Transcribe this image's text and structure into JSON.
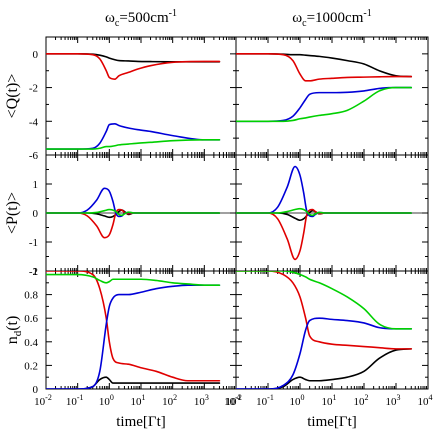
{
  "chart_data": {
    "type": "line",
    "columns": [
      {
        "title": "ω",
        "title_sub": "c",
        "title_value": "=500cm",
        "title_sup": "-1"
      },
      {
        "title": "ω",
        "title_sub": "c",
        "title_value": "=1000cm",
        "title_sup": "-1"
      }
    ],
    "xlabel": "time[Γt]",
    "x_scale": "log",
    "xlim": [
      0.01,
      10000
    ],
    "x_ticks": [
      0.01,
      0.1,
      1,
      10,
      100,
      1000,
      10000
    ],
    "x_tick_labels": [
      {
        "base": "10",
        "exp": "-2"
      },
      {
        "base": "10",
        "exp": "-1"
      },
      {
        "base": "10",
        "exp": "0"
      },
      {
        "base": "10",
        "exp": "1"
      },
      {
        "base": "10",
        "exp": "2"
      },
      {
        "base": "10",
        "exp": "3"
      },
      {
        "base": "10",
        "exp": "4"
      }
    ],
    "rows": [
      {
        "ylabel": "<Q(t)>",
        "ylim": [
          -6,
          1
        ],
        "y_ticks": [
          -6,
          -4,
          -2,
          0
        ],
        "y_tick_labels": [
          "-6",
          "-4",
          "-2",
          "0"
        ],
        "zero_line": false
      },
      {
        "ylabel": "<P(t)>",
        "ylim": [
          -2,
          2
        ],
        "y_ticks": [
          -2,
          -1,
          0,
          1
        ],
        "y_tick_labels": [
          "-2",
          "-1",
          "0",
          "1"
        ],
        "zero_line": true
      },
      {
        "ylabel": "n_d(t)",
        "ylabel_base": "n",
        "ylabel_sub": "d",
        "ylabel_rest": "(t)",
        "ylim": [
          0,
          1
        ],
        "y_ticks": [
          0,
          0.2,
          0.4,
          0.6,
          0.8,
          1
        ],
        "y_tick_labels": [
          "0",
          "0.2",
          "0.4",
          "0.6",
          "0.8",
          "1"
        ],
        "zero_line": false
      }
    ],
    "colors": {
      "black": "#000000",
      "red": "#e00000",
      "green": "#00d000",
      "blue": "#0000d8"
    },
    "panels": [
      {
        "row": 0,
        "col": 0,
        "x": [
          0.01,
          0.1,
          0.3,
          0.5,
          0.8,
          1,
          1.5,
          2,
          4,
          8,
          20,
          100,
          1000,
          3000
        ],
        "series": [
          {
            "color": "black",
            "values": [
              0,
              0,
              -0.02,
              -0.08,
              -0.18,
              -0.25,
              -0.35,
              -0.4,
              -0.42,
              -0.45,
              -0.46,
              -0.47,
              -0.47,
              -0.47
            ]
          },
          {
            "color": "red",
            "values": [
              0,
              0,
              -0.05,
              -0.3,
              -1.0,
              -1.4,
              -1.5,
              -1.3,
              -1.1,
              -0.9,
              -0.7,
              -0.5,
              -0.45,
              -0.45
            ]
          },
          {
            "color": "blue",
            "values": [
              -5.65,
              -5.65,
              -5.6,
              -5.3,
              -4.6,
              -4.2,
              -4.15,
              -4.25,
              -4.4,
              -4.5,
              -4.6,
              -4.85,
              -5.1,
              -5.1
            ]
          },
          {
            "color": "green",
            "values": [
              -5.65,
              -5.65,
              -5.65,
              -5.6,
              -5.5,
              -5.5,
              -5.45,
              -5.4,
              -5.35,
              -5.3,
              -5.25,
              -5.15,
              -5.1,
              -5.1
            ]
          }
        ]
      },
      {
        "row": 0,
        "col": 1,
        "x": [
          0.01,
          0.1,
          0.3,
          0.6,
          1,
          1.5,
          2,
          4,
          10,
          30,
          100,
          300,
          1000,
          3000
        ],
        "series": [
          {
            "color": "black",
            "values": [
              0,
              0,
              -0.02,
              -0.05,
              -0.05,
              -0.08,
              -0.1,
              -0.15,
              -0.25,
              -0.4,
              -0.6,
              -1.0,
              -1.3,
              -1.35
            ]
          },
          {
            "color": "red",
            "values": [
              0,
              0,
              -0.05,
              -0.4,
              -1.2,
              -1.6,
              -1.6,
              -1.5,
              -1.45,
              -1.4,
              -1.38,
              -1.36,
              -1.35,
              -1.35
            ]
          },
          {
            "color": "blue",
            "values": [
              -4,
              -4,
              -3.95,
              -3.7,
              -3.2,
              -2.7,
              -2.4,
              -2.3,
              -2.3,
              -2.28,
              -2.2,
              -2.05,
              -2.0,
              -2.0
            ]
          },
          {
            "color": "green",
            "values": [
              -4,
              -4,
              -4,
              -3.95,
              -3.85,
              -3.8,
              -3.75,
              -3.65,
              -3.55,
              -3.35,
              -2.8,
              -2.2,
              -2.0,
              -2.0
            ]
          }
        ]
      },
      {
        "row": 1,
        "col": 0,
        "x": [
          0.01,
          0.1,
          0.2,
          0.4,
          0.7,
          1,
          1.3,
          1.6,
          2,
          2.5,
          3,
          4,
          6,
          10,
          100,
          3000
        ],
        "series": [
          {
            "color": "black",
            "values": [
              0,
              0,
              0,
              -0.03,
              -0.1,
              -0.15,
              -0.12,
              -0.05,
              0.05,
              0.1,
              0.05,
              -0.05,
              0,
              0,
              0,
              0
            ]
          },
          {
            "color": "red",
            "values": [
              0,
              0,
              -0.1,
              -0.45,
              -0.85,
              -0.75,
              -0.4,
              0,
              0.12,
              0.1,
              0.02,
              -0.02,
              0,
              0,
              0,
              0
            ]
          },
          {
            "color": "blue",
            "values": [
              0,
              0,
              0.1,
              0.45,
              0.85,
              0.75,
              0.4,
              0,
              -0.12,
              -0.1,
              -0.02,
              0.02,
              0,
              0,
              0,
              0
            ]
          },
          {
            "color": "green",
            "values": [
              0,
              0,
              0,
              0.02,
              0.08,
              0.12,
              0.1,
              0.05,
              -0.05,
              -0.08,
              -0.03,
              0.03,
              0,
              0,
              0,
              0
            ]
          }
        ]
      },
      {
        "row": 1,
        "col": 1,
        "x": [
          0.01,
          0.1,
          0.2,
          0.4,
          0.7,
          1,
          1.3,
          1.6,
          2,
          2.5,
          3,
          4,
          6,
          10,
          100,
          3000
        ],
        "series": [
          {
            "color": "black",
            "values": [
              0,
              0,
              0,
              -0.05,
              -0.18,
              -0.25,
              -0.2,
              -0.1,
              0.02,
              0.08,
              0.05,
              -0.03,
              0,
              0,
              0,
              0
            ]
          },
          {
            "color": "red",
            "values": [
              0,
              0,
              -0.2,
              -0.9,
              -1.6,
              -1.3,
              -0.7,
              -0.1,
              0.1,
              0.12,
              0.05,
              -0.02,
              0,
              0,
              0,
              0
            ]
          },
          {
            "color": "blue",
            "values": [
              0,
              0,
              0.2,
              0.9,
              1.6,
              1.3,
              0.7,
              0.1,
              -0.1,
              -0.12,
              -0.05,
              0.02,
              0,
              0,
              0,
              0
            ]
          },
          {
            "color": "green",
            "values": [
              0,
              0,
              0,
              0.05,
              0.12,
              0.15,
              0.12,
              0.05,
              -0.05,
              -0.08,
              -0.03,
              0.02,
              0,
              0,
              0,
              0
            ]
          }
        ]
      },
      {
        "row": 2,
        "col": 0,
        "x": [
          0.01,
          0.1,
          0.3,
          0.5,
          0.8,
          1,
          1.3,
          2,
          4,
          10,
          30,
          100,
          300,
          1000,
          3000
        ],
        "series": [
          {
            "color": "black",
            "values": [
              0,
              0,
              0.02,
              0.08,
              0.1,
              0.08,
              0.05,
              0.05,
              0.05,
              0.05,
              0.05,
              0.05,
              0.05,
              0.05,
              0.05
            ]
          },
          {
            "color": "red",
            "values": [
              1,
              1,
              0.97,
              0.85,
              0.6,
              0.4,
              0.26,
              0.22,
              0.21,
              0.18,
              0.15,
              0.1,
              0.07,
              0.07,
              0.07
            ]
          },
          {
            "color": "blue",
            "values": [
              0,
              0,
              0.02,
              0.15,
              0.55,
              0.7,
              0.77,
              0.8,
              0.8,
              0.82,
              0.85,
              0.87,
              0.88,
              0.88,
              0.88
            ]
          },
          {
            "color": "green",
            "values": [
              0.97,
              0.97,
              0.95,
              0.92,
              0.9,
              0.91,
              0.93,
              0.93,
              0.93,
              0.93,
              0.92,
              0.9,
              0.89,
              0.88,
              0.88
            ]
          }
        ]
      },
      {
        "row": 2,
        "col": 1,
        "x": [
          0.01,
          0.1,
          0.3,
          0.6,
          1,
          1.5,
          2,
          4,
          10,
          30,
          100,
          300,
          1000,
          3000
        ],
        "series": [
          {
            "color": "black",
            "values": [
              0,
              0,
              0.02,
              0.08,
              0.1,
              0.08,
              0.07,
              0.07,
              0.08,
              0.1,
              0.15,
              0.26,
              0.33,
              0.34
            ]
          },
          {
            "color": "red",
            "values": [
              1,
              1,
              0.97,
              0.9,
              0.78,
              0.6,
              0.45,
              0.4,
              0.38,
              0.37,
              0.36,
              0.35,
              0.34,
              0.34
            ]
          },
          {
            "color": "blue",
            "values": [
              0,
              0,
              0.03,
              0.12,
              0.3,
              0.5,
              0.58,
              0.6,
              0.59,
              0.58,
              0.56,
              0.52,
              0.51,
              0.51
            ]
          },
          {
            "color": "green",
            "values": [
              1,
              1,
              1,
              0.99,
              0.97,
              0.95,
              0.93,
              0.9,
              0.85,
              0.78,
              0.68,
              0.55,
              0.51,
              0.51
            ]
          }
        ]
      }
    ]
  }
}
